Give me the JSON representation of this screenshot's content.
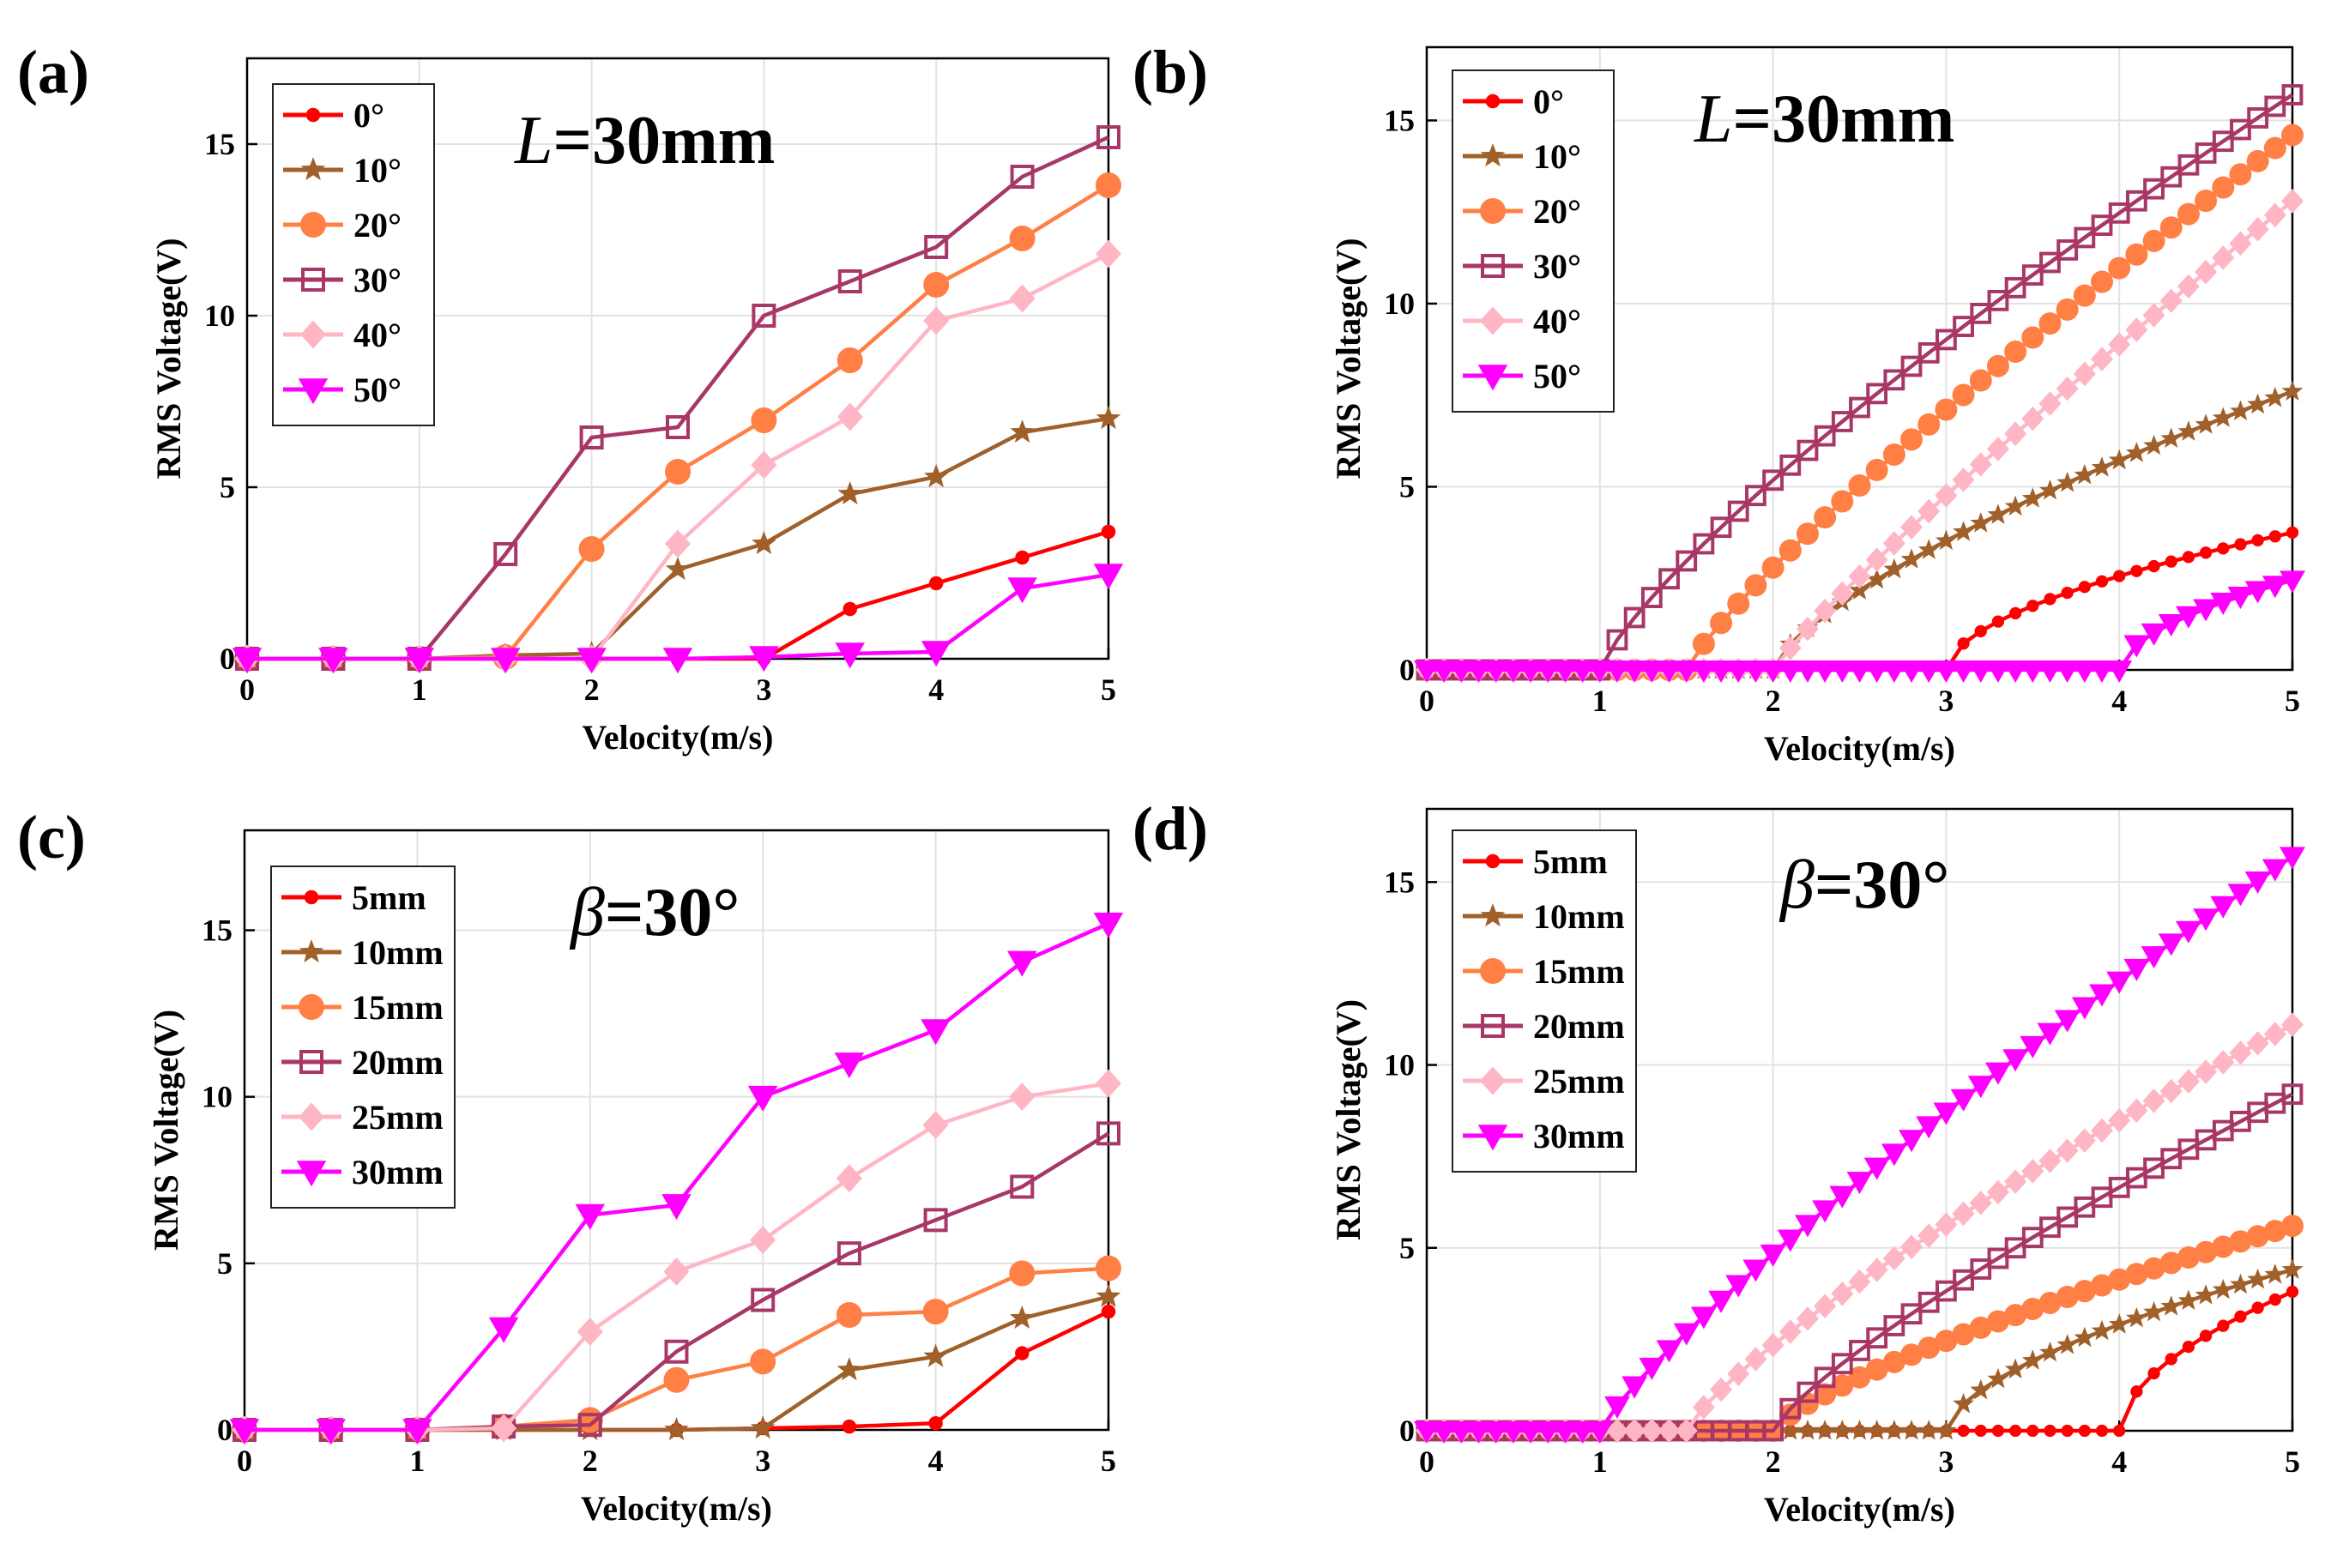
{
  "colors": {
    "0": "#ff0000",
    "10": "#a0602a",
    "20": "#ff7f45",
    "30": "#a83768",
    "40": "#ffb6c4",
    "50": "#ff00ff",
    "grid": "#e2e2e2"
  },
  "chart_data": [
    {
      "panel": "(a)",
      "type": "line",
      "annotation_italic": "L",
      "annotation_rest": "=30mm",
      "xlabel": "Velocity(m/s)",
      "ylabel": "RMS Voltage(V)",
      "xlim": [
        0,
        5
      ],
      "ylim": [
        0,
        17.5
      ],
      "xticks": [
        0,
        1,
        2,
        3,
        4,
        5
      ],
      "yticks": [
        0,
        5,
        10,
        15
      ],
      "x": [
        0,
        0.5,
        1,
        1.5,
        2,
        2.5,
        3,
        3.5,
        4,
        4.5,
        5
      ],
      "legend_position": "top-left",
      "series": [
        {
          "name": "0°",
          "color_key": "0",
          "marker": "dot",
          "values": [
            0,
            0,
            0,
            0,
            0,
            0,
            0,
            1.45,
            2.2,
            2.95,
            3.7
          ]
        },
        {
          "name": "10°",
          "color_key": "10",
          "marker": "star",
          "values": [
            0,
            0,
            0,
            0.1,
            0.15,
            2.6,
            3.35,
            4.8,
            5.3,
            6.6,
            7.0
          ]
        },
        {
          "name": "20°",
          "color_key": "20",
          "marker": "circle",
          "values": [
            0,
            0,
            0,
            0.05,
            3.2,
            5.45,
            6.95,
            8.7,
            10.9,
            12.25,
            13.8
          ]
        },
        {
          "name": "30°",
          "color_key": "30",
          "marker": "square",
          "values": [
            0,
            0,
            0,
            3.05,
            6.45,
            6.75,
            10.0,
            11.0,
            12.0,
            14.05,
            15.2
          ]
        },
        {
          "name": "40°",
          "color_key": "40",
          "marker": "diamond",
          "values": [
            0,
            0,
            0,
            0,
            0,
            3.35,
            5.65,
            7.05,
            9.85,
            10.5,
            11.8
          ]
        },
        {
          "name": "50°",
          "color_key": "50",
          "marker": "triangle",
          "values": [
            0,
            0,
            0,
            0,
            0,
            0,
            0.05,
            0.15,
            0.2,
            2.05,
            2.45
          ]
        }
      ]
    },
    {
      "panel": "(b)",
      "type": "line",
      "annotation_italic": "L",
      "annotation_rest": "=30mm",
      "xlabel": "Velocity(m/s)",
      "ylabel": "RMS Voltage(V)",
      "xlim": [
        0,
        5
      ],
      "ylim": [
        0,
        17
      ],
      "xticks": [
        0,
        1,
        2,
        3,
        4,
        5
      ],
      "yticks": [
        0,
        5,
        10,
        15
      ],
      "x_step": 0.1,
      "legend_position": "top-left",
      "series": [
        {
          "name": "0°",
          "color_key": "0",
          "marker": "dot",
          "onset": 3.0,
          "end": 3.75,
          "exp": 0.55
        },
        {
          "name": "10°",
          "color_key": "10",
          "marker": "star",
          "onset": 2.0,
          "end": 7.6,
          "exp": 0.7
        },
        {
          "name": "20°",
          "color_key": "20",
          "marker": "circle",
          "onset": 1.5,
          "end": 14.6,
          "exp": 0.85
        },
        {
          "name": "30°",
          "color_key": "30",
          "marker": "square",
          "onset": 1.0,
          "end": 15.7,
          "exp": 0.8
        },
        {
          "name": "40°",
          "color_key": "40",
          "marker": "diamond",
          "onset": 2.0,
          "end": 12.8,
          "exp": 0.9
        },
        {
          "name": "50°",
          "color_key": "50",
          "marker": "triangle",
          "onset": 4.0,
          "end": 2.45,
          "exp": 0.55
        }
      ]
    },
    {
      "panel": "(c)",
      "type": "line",
      "annotation_italic": "β",
      "annotation_rest": "=30°",
      "xlabel": "Velocity(m/s)",
      "ylabel": "RMS Voltage(V)",
      "xlim": [
        0,
        5
      ],
      "ylim": [
        0,
        18
      ],
      "xticks": [
        0,
        1,
        2,
        3,
        4,
        5
      ],
      "yticks": [
        0,
        5,
        10,
        15
      ],
      "x": [
        0,
        0.5,
        1,
        1.5,
        2,
        2.5,
        3,
        3.5,
        4,
        4.5,
        5
      ],
      "legend_position": "top-left",
      "series": [
        {
          "name": "5mm",
          "color_key": "0",
          "marker": "dot",
          "values": [
            0,
            0,
            0,
            0,
            0,
            0,
            0.05,
            0.1,
            0.2,
            2.3,
            3.55
          ]
        },
        {
          "name": "10mm",
          "color_key": "10",
          "marker": "star",
          "values": [
            0,
            0,
            0,
            0,
            0,
            0,
            0.05,
            1.8,
            2.2,
            3.35,
            4.0
          ]
        },
        {
          "name": "15mm",
          "color_key": "20",
          "marker": "circle",
          "values": [
            0,
            0,
            0,
            0.1,
            0.3,
            1.5,
            2.05,
            3.45,
            3.55,
            4.7,
            4.85
          ]
        },
        {
          "name": "20mm",
          "color_key": "30",
          "marker": "square",
          "values": [
            0,
            0,
            0,
            0.1,
            0.15,
            2.35,
            3.9,
            5.3,
            6.3,
            7.3,
            8.9
          ]
        },
        {
          "name": "25mm",
          "color_key": "40",
          "marker": "diamond",
          "values": [
            0,
            0,
            0,
            0.05,
            2.95,
            4.75,
            5.7,
            7.55,
            9.15,
            10.0,
            10.4
          ]
        },
        {
          "name": "30mm",
          "color_key": "50",
          "marker": "triangle",
          "values": [
            0,
            0,
            0,
            3.05,
            6.45,
            6.75,
            10.0,
            11.0,
            12.0,
            14.05,
            15.2
          ]
        }
      ]
    },
    {
      "panel": "(d)",
      "type": "line",
      "annotation_italic": "β",
      "annotation_rest": "=30°",
      "xlabel": "Velocity(m/s)",
      "ylabel": "RMS Voltage(V)",
      "xlim": [
        0,
        5
      ],
      "ylim": [
        0,
        17
      ],
      "xticks": [
        0,
        1,
        2,
        3,
        4,
        5
      ],
      "yticks": [
        0,
        5,
        10,
        15
      ],
      "x_step": 0.1,
      "legend_position": "top-left",
      "series": [
        {
          "name": "5mm",
          "color_key": "0",
          "marker": "dot",
          "onset": 4.0,
          "end": 3.8,
          "exp": 0.55
        },
        {
          "name": "10mm",
          "color_key": "10",
          "marker": "star",
          "onset": 3.0,
          "end": 4.4,
          "exp": 0.6
        },
        {
          "name": "15mm",
          "color_key": "20",
          "marker": "circle",
          "onset": 2.0,
          "end": 5.6,
          "exp": 0.75
        },
        {
          "name": "20mm",
          "color_key": "30",
          "marker": "square",
          "onset": 2.0,
          "end": 9.2,
          "exp": 0.8
        },
        {
          "name": "25mm",
          "color_key": "40",
          "marker": "diamond",
          "onset": 1.5,
          "end": 11.1,
          "exp": 0.8
        },
        {
          "name": "30mm",
          "color_key": "50",
          "marker": "triangle",
          "onset": 1.0,
          "end": 15.7,
          "exp": 0.85
        }
      ]
    }
  ]
}
